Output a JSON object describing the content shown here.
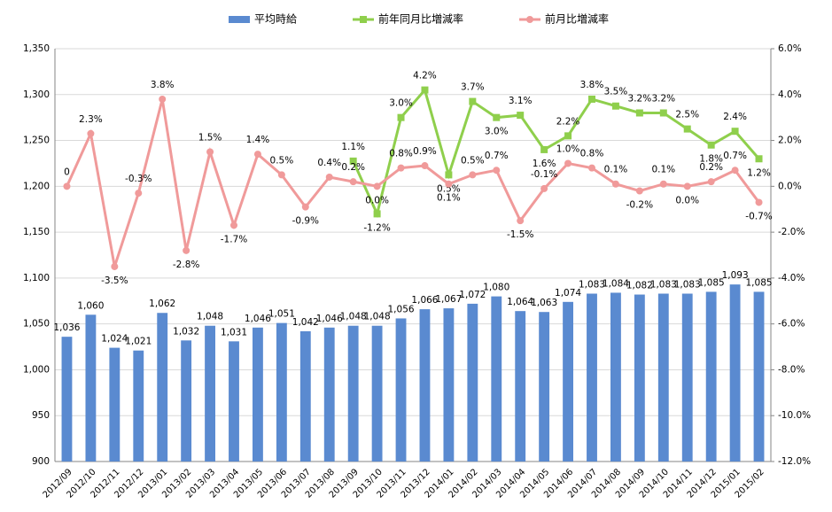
{
  "chart_data": {
    "type": "bar_line_combo",
    "categories": [
      "2012/09",
      "2012/10",
      "2012/11",
      "2012/12",
      "2013/01",
      "2013/02",
      "2013/03",
      "2013/04",
      "2013/05",
      "2013/06",
      "2013/07",
      "2013/08",
      "2013/09",
      "2013/10",
      "2013/11",
      "2013/12",
      "2014/01",
      "2014/02",
      "2014/03",
      "2014/04",
      "2014/05",
      "2014/06",
      "2014/07",
      "2014/08",
      "2014/09",
      "2014/10",
      "2014/11",
      "2014/12",
      "2015/01",
      "2015/02"
    ],
    "series": [
      {
        "name": "平均時給",
        "type": "bar",
        "color": "#5a8ad0",
        "values": [
          1036,
          1060,
          1024,
          1021,
          1062,
          1032,
          1048,
          1031,
          1046,
          1051,
          1042,
          1046,
          1048,
          1048,
          1056,
          1066,
          1067,
          1072,
          1080,
          1064,
          1063,
          1074,
          1083,
          1084,
          1082,
          1083,
          1083,
          1085,
          1093,
          1085
        ],
        "value_labels": [
          "1,036",
          "1,060",
          "1,024",
          "1,021",
          "1,062",
          "1,032",
          "1,048",
          "1,031",
          "1,046",
          "1,051",
          "1,042",
          "1,046",
          "1,048",
          "1,048",
          "1,056",
          "1,066",
          "1,067",
          "1,072",
          "1,080",
          "1,064",
          "1,063",
          "1,074",
          "1,083",
          "1,084",
          "1,082",
          "1,083",
          "1,083",
          "1,085",
          "1,093",
          "1,085"
        ]
      },
      {
        "name": "前年同月比増減率",
        "type": "line",
        "axis": "y2",
        "color": "#8fcf4c",
        "marker": "square",
        "values": [
          null,
          null,
          null,
          null,
          null,
          null,
          null,
          null,
          null,
          null,
          null,
          null,
          1.1,
          -1.2,
          3.0,
          4.2,
          0.5,
          3.7,
          3.0,
          3.1,
          1.6,
          2.2,
          3.8,
          3.5,
          3.2,
          3.2,
          2.5,
          1.8,
          2.4,
          1.2
        ],
        "value_labels": [
          null,
          null,
          null,
          null,
          null,
          null,
          null,
          null,
          null,
          null,
          null,
          null,
          "1.1%",
          "-1.2%",
          "3.0%",
          "4.2%",
          "0.5%",
          "3.7%",
          "3.0%",
          "3.1%",
          "1.6%",
          "2.2%",
          "3.8%",
          "3.5%",
          "3.2%",
          "3.2%",
          "2.5%",
          "1.8%",
          "2.4%",
          "1.2%"
        ]
      },
      {
        "name": "前月比増減率",
        "type": "line",
        "axis": "y2",
        "color": "#f09a9a",
        "marker": "circle",
        "values": [
          0,
          2.3,
          -3.5,
          -0.3,
          3.8,
          -2.8,
          1.5,
          -1.7,
          1.4,
          0.5,
          -0.9,
          0.4,
          0.2,
          0.0,
          0.8,
          0.9,
          0.1,
          0.5,
          0.7,
          -1.5,
          -0.1,
          1.0,
          0.8,
          0.1,
          -0.2,
          0.1,
          0.0,
          0.2,
          0.7,
          -0.7
        ],
        "value_labels": [
          "0",
          "2.3%",
          "-3.5%",
          "-0.3%",
          "3.8%",
          "-2.8%",
          "1.5%",
          "-1.7%",
          "1.4%",
          "0.5%",
          "-0.9%",
          "0.4%",
          "0.2%",
          "0.0%",
          "0.8%",
          "0.9%",
          "0.1%",
          "0.5%",
          "0.7%",
          "-1.5%",
          "-0.1%",
          "1.0%",
          "0.8%",
          "0.1%",
          "-0.2%",
          "0.1%",
          "0.0%",
          "0.2%",
          "0.7%",
          "-0.7%"
        ]
      }
    ],
    "ylim": [
      900,
      1350
    ],
    "yticks": [
      900,
      950,
      {
        "value": 1000,
        "label": "1,000"
      },
      {
        "value": 1050,
        "label": "1,050"
      },
      {
        "value": 1100,
        "label": "1,100"
      },
      {
        "value": 1150,
        "label": "1,150"
      },
      {
        "value": 1200,
        "label": "1,200"
      },
      {
        "value": 1250,
        "label": "1,250"
      },
      {
        "value": 1300,
        "label": "1,300"
      },
      {
        "value": 1350,
        "label": "1,350"
      }
    ],
    "y2lim": [
      -12,
      6
    ],
    "y2ticks": [
      {
        "value": -12,
        "label": "-12.0%"
      },
      {
        "value": -10,
        "label": "-10.0%"
      },
      {
        "value": -8,
        "label": "-8.0%"
      },
      {
        "value": -6,
        "label": "-6.0%"
      },
      {
        "value": -4,
        "label": "-4.0%"
      },
      {
        "value": -2,
        "label": "-2.0%"
      },
      {
        "value": 0,
        "label": "0.0%"
      },
      {
        "value": 2,
        "label": "2.0%"
      },
      {
        "value": 4,
        "label": "4.0%"
      },
      {
        "value": 6,
        "label": "6.0%"
      }
    ],
    "grid": true,
    "legend": "top"
  }
}
